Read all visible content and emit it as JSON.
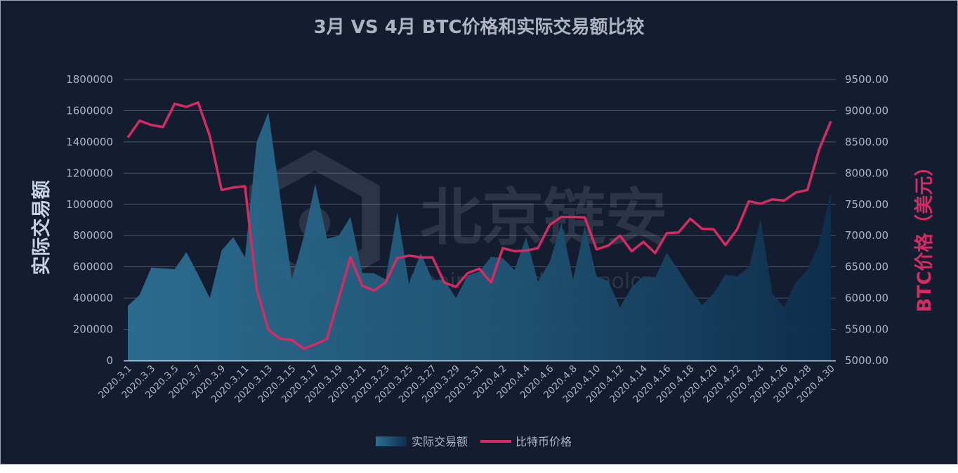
{
  "chart_data": {
    "type": "area+line",
    "title": "3月 VS 4月 BTC价格和实际交易额比较",
    "y_left_label": "实际交易额",
    "y_right_label": "BTC价格（美元）",
    "y_left_range": [
      0,
      1800000
    ],
    "y_left_ticks": [
      "0",
      "200000",
      "400000",
      "600000",
      "800000",
      "1000000",
      "1200000",
      "1400000",
      "1600000",
      "1800000"
    ],
    "y_right_range": [
      5000,
      9500
    ],
    "y_right_ticks": [
      "5000.00",
      "5500.00",
      "6000.00",
      "6500.00",
      "7000.00",
      "7500.00",
      "8000.00",
      "8500.00",
      "9000.00",
      "9500.00"
    ],
    "x_tick_labels": [
      "2020.3.1",
      "2020.3.3",
      "2020.3.5",
      "2020.3.7",
      "2020.3.9",
      "2020.3.11",
      "2020.3.13",
      "2020.3.15",
      "2020.3.17",
      "2020.3.19",
      "2020.3.21",
      "2020.3.23",
      "2020.3.25",
      "2020.3.27",
      "2020.3.29",
      "2020.3.31",
      "2020.4.2",
      "2020.4.4",
      "2020.4.6",
      "2020.4.8",
      "2020.4.10",
      "2020.4.12",
      "2020.4.14",
      "2020.4.16",
      "2020.4.18",
      "2020.4.20",
      "2020.4.22",
      "2020.4.24",
      "2020.4.26",
      "2020.4.28",
      "2020.4.30"
    ],
    "grid": true,
    "legend_position": "bottom-center",
    "series": [
      {
        "name": "实际交易额",
        "type": "area",
        "axis": "left",
        "color": "#2a6a8e",
        "values": [
          350000,
          420000,
          595000,
          590000,
          585000,
          695000,
          550000,
          400000,
          705000,
          790000,
          660000,
          1400000,
          1590000,
          1050000,
          520000,
          790000,
          1130000,
          780000,
          800000,
          920000,
          560000,
          560000,
          520000,
          950000,
          490000,
          690000,
          515000,
          520000,
          400000,
          545000,
          570000,
          665000,
          655000,
          580000,
          790000,
          505000,
          630000,
          880000,
          520000,
          860000,
          540000,
          510000,
          340000,
          470000,
          540000,
          530000,
          690000,
          580000,
          460000,
          355000,
          430000,
          550000,
          540000,
          595000,
          905000,
          430000,
          340000,
          500000,
          580000,
          750000,
          1080000
        ]
      },
      {
        "name": "比特币价格",
        "type": "line",
        "axis": "right",
        "color": "#d42b62",
        "values": [
          8570,
          8840,
          8770,
          8740,
          9110,
          9060,
          9130,
          8590,
          7730,
          7770,
          7790,
          6150,
          5490,
          5350,
          5330,
          5190,
          5260,
          5350,
          6000,
          6650,
          6200,
          6120,
          6250,
          6640,
          6680,
          6650,
          6650,
          6250,
          6180,
          6400,
          6470,
          6250,
          6800,
          6750,
          6760,
          6800,
          7170,
          7300,
          7300,
          7290,
          6780,
          6840,
          7000,
          6750,
          6900,
          6720,
          7040,
          7050,
          7270,
          7110,
          7100,
          6850,
          7100,
          7550,
          7510,
          7580,
          7560,
          7690,
          7730,
          8380,
          8830
        ]
      }
    ]
  },
  "legend": {
    "area_label": "实际交易额",
    "line_label": "比特币价格"
  },
  "watermark": {
    "text_cn": "北京链安",
    "text_en": "ChainsGuard Technology"
  },
  "colors": {
    "background": "#141c30",
    "grid": "#4a5266",
    "axis_text": "#aeb6c6",
    "title": "#aeb4c2",
    "left_label": "#c8d2e6",
    "right_label": "#d42b62"
  }
}
